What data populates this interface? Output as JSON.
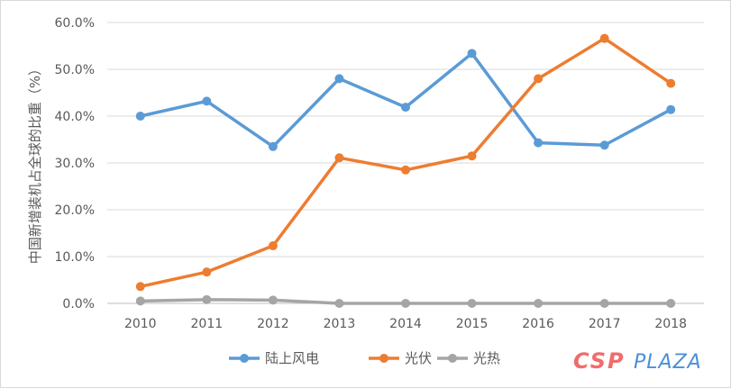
{
  "chart_data": {
    "type": "line",
    "title": "",
    "xlabel": "",
    "ylabel": "中国新增装机占全球的比重（%）",
    "categories": [
      "2010",
      "2011",
      "2012",
      "2013",
      "2014",
      "2015",
      "2016",
      "2017",
      "2018"
    ],
    "ylim": [
      0,
      60
    ],
    "yticks": [
      "0.0%",
      "10.0%",
      "20.0%",
      "30.0%",
      "40.0%",
      "50.0%",
      "60.0%"
    ],
    "grid": true,
    "legend_position": "bottom",
    "series": [
      {
        "name": "陆上风电",
        "color": "#5b9bd5",
        "values": [
          40.0,
          43.2,
          33.5,
          48.0,
          41.9,
          53.4,
          34.3,
          33.8,
          41.4
        ]
      },
      {
        "name": "光伏",
        "color": "#ed7d31",
        "values": [
          3.6,
          6.7,
          12.3,
          31.1,
          28.5,
          31.5,
          48.0,
          56.6,
          47.0
        ]
      },
      {
        "name": "光热",
        "color": "#a5a5a5",
        "values": [
          0.5,
          0.8,
          0.7,
          0.0,
          0.0,
          0.0,
          0.0,
          0.0,
          0.0
        ]
      }
    ]
  },
  "watermark": {
    "part1": "CSP",
    "part2": "PLAZA"
  }
}
